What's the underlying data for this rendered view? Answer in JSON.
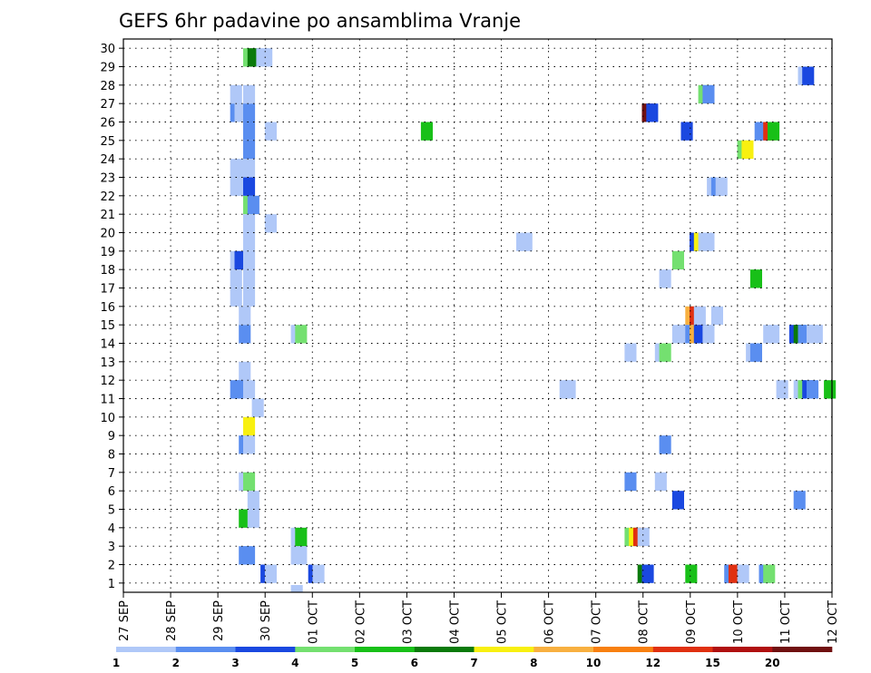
{
  "chart_data": {
    "type": "heatmap",
    "title": "GEFS 6hr padavine po ansamblima Vranje",
    "y_ticks": [
      "1",
      "2",
      "3",
      "4",
      "5",
      "6",
      "7",
      "8",
      "9",
      "10",
      "11",
      "12",
      "13",
      "14",
      "15",
      "16",
      "17",
      "18",
      "19",
      "20",
      "21",
      "22",
      "23",
      "24",
      "25",
      "26",
      "27",
      "28",
      "29",
      "30"
    ],
    "x_ticks": [
      "27 SEP",
      "28 SEP",
      "29 SEP",
      "30 SEP",
      "01 OCT",
      "02 OCT",
      "03 OCT",
      "04 OCT",
      "05 OCT",
      "06 OCT",
      "07 OCT",
      "08 OCT",
      "09 OCT",
      "10 OCT",
      "11 OCT",
      "12 OCT"
    ],
    "x_range": [
      "27 SEP 00Z",
      "12 OCT 00Z"
    ],
    "x_step_hours": 6,
    "y_range": [
      0,
      30
    ],
    "grid": true,
    "legend": {
      "placement": "bottom",
      "thresholds": [
        "1",
        "2",
        "3",
        "4",
        "5",
        "6",
        "7",
        "8",
        "10",
        "12",
        "15",
        "20"
      ],
      "colors": [
        "#b0c8f8",
        "#5a8ef0",
        "#1a48e0",
        "#74e070",
        "#18c018",
        "#0a7a0a",
        "#f8f010",
        "#f8b040",
        "#f88010",
        "#e03010",
        "#b01010",
        "#701010"
      ]
    },
    "cells": [
      {
        "m": 1,
        "t": 33,
        "c": 3
      },
      {
        "m": 1,
        "t": 34,
        "c": 1
      },
      {
        "m": 1,
        "t": 44,
        "c": 3
      },
      {
        "m": 1,
        "t": 45,
        "c": 1
      },
      {
        "m": 1,
        "t": 120,
        "c": 6
      },
      {
        "m": 1,
        "t": 121,
        "c": 3
      },
      {
        "m": 1,
        "t": 131,
        "c": 5
      },
      {
        "m": 1,
        "t": 140,
        "c": 2
      },
      {
        "m": 1,
        "t": 141,
        "c": 10
      },
      {
        "m": 1,
        "t": 143,
        "c": 1
      },
      {
        "m": 1,
        "t": 148,
        "c": 2
      },
      {
        "m": 1,
        "t": 149,
        "c": 4
      },
      {
        "m": 2,
        "t": 28,
        "c": 2
      },
      {
        "m": 2,
        "t": 29,
        "c": 2
      },
      {
        "m": 2,
        "t": 40,
        "c": 1
      },
      {
        "m": 2,
        "t": 41,
        "c": 1
      },
      {
        "m": 3,
        "t": 40,
        "c": 1
      },
      {
        "m": 3,
        "t": 41,
        "c": 5
      },
      {
        "m": 3,
        "t": 117,
        "c": 4
      },
      {
        "m": 3,
        "t": 118,
        "c": 7
      },
      {
        "m": 3,
        "t": 119,
        "c": 10
      },
      {
        "m": 3,
        "t": 120,
        "c": 1
      },
      {
        "m": 4,
        "t": 28,
        "c": 5
      },
      {
        "m": 4,
        "t": 30,
        "c": 1
      },
      {
        "m": 5,
        "t": 30,
        "c": 1
      },
      {
        "m": 5,
        "t": 128,
        "c": 3
      },
      {
        "m": 5,
        "t": 156,
        "c": 2
      },
      {
        "m": 6,
        "t": 28,
        "c": 1
      },
      {
        "m": 6,
        "t": 29,
        "c": 4
      },
      {
        "m": 6,
        "t": 117,
        "c": 2
      },
      {
        "m": 6,
        "t": 124,
        "c": 1
      },
      {
        "m": 8,
        "t": 28,
        "c": 2
      },
      {
        "m": 8,
        "t": 29,
        "c": 1
      },
      {
        "m": 8,
        "t": 125,
        "c": 2
      },
      {
        "m": 9,
        "t": 29,
        "c": 7
      },
      {
        "m": 10,
        "t": 31,
        "c": 1
      },
      {
        "m": 11,
        "t": 26,
        "c": 2
      },
      {
        "m": 11,
        "t": 27,
        "c": 2
      },
      {
        "m": 11,
        "t": 29,
        "c": 1
      },
      {
        "m": 11,
        "t": 102,
        "c": 1
      },
      {
        "m": 11,
        "t": 103,
        "c": 1
      },
      {
        "m": 11,
        "t": 152,
        "c": 1
      },
      {
        "m": 11,
        "t": 156,
        "c": 1
      },
      {
        "m": 11,
        "t": 157,
        "c": 4
      },
      {
        "m": 11,
        "t": 158,
        "c": 3
      },
      {
        "m": 11,
        "t": 159,
        "c": 2
      },
      {
        "m": 11,
        "t": 163,
        "c": 5
      },
      {
        "m": 12,
        "t": 28,
        "c": 1
      },
      {
        "m": 13,
        "t": 117,
        "c": 1
      },
      {
        "m": 13,
        "t": 124,
        "c": 1
      },
      {
        "m": 13,
        "t": 125,
        "c": 4
      },
      {
        "m": 13,
        "t": 145,
        "c": 1
      },
      {
        "m": 13,
        "t": 146,
        "c": 2
      },
      {
        "m": 14,
        "t": 28,
        "c": 2
      },
      {
        "m": 14,
        "t": 40,
        "c": 1
      },
      {
        "m": 14,
        "t": 41,
        "c": 4
      },
      {
        "m": 14,
        "t": 128,
        "c": 1
      },
      {
        "m": 14,
        "t": 129,
        "c": 1
      },
      {
        "m": 14,
        "t": 131,
        "c": 2
      },
      {
        "m": 14,
        "t": 132,
        "c": 8
      },
      {
        "m": 14,
        "t": 133,
        "c": 3
      },
      {
        "m": 14,
        "t": 134,
        "c": 3
      },
      {
        "m": 14,
        "t": 135,
        "c": 1
      },
      {
        "m": 14,
        "t": 149,
        "c": 1
      },
      {
        "m": 14,
        "t": 150,
        "c": 1
      },
      {
        "m": 14,
        "t": 155,
        "c": 3
      },
      {
        "m": 14,
        "t": 156,
        "c": 6
      },
      {
        "m": 14,
        "t": 157,
        "c": 2
      },
      {
        "m": 14,
        "t": 158,
        "c": 2
      },
      {
        "m": 14,
        "t": 159,
        "c": 1
      },
      {
        "m": 14,
        "t": 160,
        "c": 1
      },
      {
        "m": 15,
        "t": 28,
        "c": 1
      },
      {
        "m": 15,
        "t": 131,
        "c": 8
      },
      {
        "m": 15,
        "t": 132,
        "c": 10
      },
      {
        "m": 15,
        "t": 133,
        "c": 1
      },
      {
        "m": 15,
        "t": 137,
        "c": 1
      },
      {
        "m": 16,
        "t": 26,
        "c": 1
      },
      {
        "m": 16,
        "t": 29,
        "c": 1
      },
      {
        "m": 17,
        "t": 26,
        "c": 1
      },
      {
        "m": 17,
        "t": 29,
        "c": 1
      },
      {
        "m": 17,
        "t": 125,
        "c": 1
      },
      {
        "m": 17,
        "t": 146,
        "c": 5
      },
      {
        "m": 18,
        "t": 26,
        "c": 1
      },
      {
        "m": 18,
        "t": 27,
        "c": 3
      },
      {
        "m": 18,
        "t": 29,
        "c": 1
      },
      {
        "m": 18,
        "t": 128,
        "c": 4
      },
      {
        "m": 19,
        "t": 29,
        "c": 1
      },
      {
        "m": 19,
        "t": 132,
        "c": 3
      },
      {
        "m": 19,
        "t": 133,
        "c": 7
      },
      {
        "m": 19,
        "t": 134,
        "c": 1
      },
      {
        "m": 19,
        "t": 135,
        "c": 1
      },
      {
        "m": 19,
        "t": 92,
        "c": 1
      },
      {
        "m": 19,
        "t": 93,
        "c": 1
      },
      {
        "m": 20,
        "t": 29,
        "c": 1
      },
      {
        "m": 20,
        "t": 34,
        "c": 1
      },
      {
        "m": 21,
        "t": 29,
        "c": 4
      },
      {
        "m": 21,
        "t": 30,
        "c": 2
      },
      {
        "m": 22,
        "t": 26,
        "c": 1
      },
      {
        "m": 22,
        "t": 27,
        "c": 1
      },
      {
        "m": 22,
        "t": 29,
        "c": 3
      },
      {
        "m": 22,
        "t": 136,
        "c": 1
      },
      {
        "m": 22,
        "t": 137,
        "c": 2
      },
      {
        "m": 22,
        "t": 138,
        "c": 1
      },
      {
        "m": 23,
        "t": 26,
        "c": 1
      },
      {
        "m": 23,
        "t": 27,
        "c": 1
      },
      {
        "m": 23,
        "t": 29,
        "c": 1
      },
      {
        "m": 24,
        "t": 29,
        "c": 2
      },
      {
        "m": 24,
        "t": 143,
        "c": 4
      },
      {
        "m": 24,
        "t": 144,
        "c": 7
      },
      {
        "m": 25,
        "t": 29,
        "c": 2
      },
      {
        "m": 25,
        "t": 34,
        "c": 1
      },
      {
        "m": 25,
        "t": 70,
        "c": 5
      },
      {
        "m": 25,
        "t": 130,
        "c": 3
      },
      {
        "m": 25,
        "t": 147,
        "c": 2
      },
      {
        "m": 25,
        "t": 149,
        "c": 10
      },
      {
        "m": 25,
        "t": 150,
        "c": 5
      },
      {
        "m": 26,
        "t": 26,
        "c": 2
      },
      {
        "m": 26,
        "t": 27,
        "c": 1
      },
      {
        "m": 26,
        "t": 29,
        "c": 2
      },
      {
        "m": 26,
        "t": 121,
        "c": 12
      },
      {
        "m": 26,
        "t": 122,
        "c": 3
      },
      {
        "m": 27,
        "t": 26,
        "c": 1
      },
      {
        "m": 27,
        "t": 29,
        "c": 1
      },
      {
        "m": 27,
        "t": 134,
        "c": 4
      },
      {
        "m": 27,
        "t": 135,
        "c": 2
      },
      {
        "m": 28,
        "t": 157,
        "c": 1
      },
      {
        "m": 28,
        "t": 158,
        "c": 3
      },
      {
        "m": 29,
        "t": 29,
        "c": 4
      },
      {
        "m": 29,
        "t": 30,
        "c": 6
      },
      {
        "m": 29,
        "t": 32,
        "c": 1
      },
      {
        "m": 29,
        "t": 33,
        "c": 1
      }
    ],
    "extra_cells_below_axis": [
      {
        "t": 40,
        "c": 1
      }
    ]
  }
}
